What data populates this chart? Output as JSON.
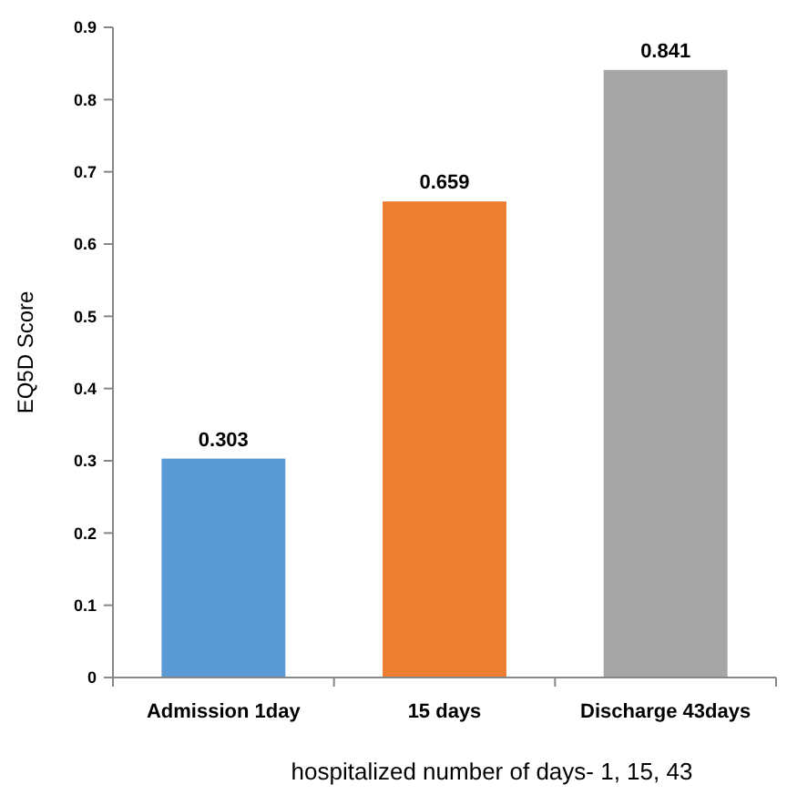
{
  "chart_data": {
    "type": "bar",
    "xlabel": "hospitalized number of days- 1, 15, 43",
    "ylabel": "EQ5D Score",
    "categories": [
      "Admission 1day",
      "15 days",
      "Discharge 43days"
    ],
    "values": [
      0.303,
      0.659,
      0.841
    ],
    "colors": [
      "#5b9bd5",
      "#ed7d31",
      "#a5a5a5"
    ],
    "ylim": [
      0,
      0.9
    ],
    "yticks": [
      0,
      0.1,
      0.2,
      0.3,
      0.4,
      0.5,
      0.6,
      0.7,
      0.8,
      0.9
    ],
    "data_labels": true
  }
}
